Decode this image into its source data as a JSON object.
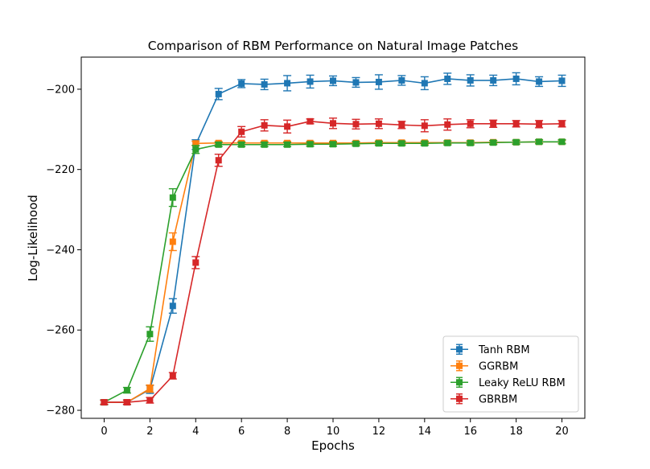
{
  "chart_data": {
    "type": "line",
    "title": "Comparison of RBM Performance on Natural Image Patches",
    "xlabel": "Epochs",
    "ylabel": "Log-Likelihood",
    "xlim": [
      -1,
      21
    ],
    "ylim": [
      -282,
      -192
    ],
    "xticks": [
      0,
      2,
      4,
      6,
      8,
      10,
      12,
      14,
      16,
      18,
      20
    ],
    "yticks": [
      -280,
      -260,
      -240,
      -220,
      -200
    ],
    "grid": false,
    "legend_position": "lower right",
    "x": [
      0,
      1,
      2,
      3,
      4,
      5,
      6,
      7,
      8,
      9,
      10,
      11,
      12,
      13,
      14,
      15,
      16,
      17,
      18,
      19,
      20
    ],
    "series": [
      {
        "name": "Tanh RBM",
        "color": "#1f77b4",
        "values": [
          -278.0,
          -278.0,
          -274.8,
          -254.0,
          -213.8,
          -201.2,
          -198.6,
          -198.8,
          -198.5,
          -198.1,
          -197.9,
          -198.3,
          -198.2,
          -197.8,
          -198.5,
          -197.4,
          -197.8,
          -197.8,
          -197.4,
          -198.1,
          -197.9
        ],
        "errors": [
          0.6,
          0.6,
          1.0,
          1.8,
          1.2,
          1.4,
          1.0,
          1.3,
          1.9,
          1.6,
          1.2,
          1.2,
          1.8,
          1.2,
          1.6,
          1.4,
          1.4,
          1.3,
          1.5,
          1.2,
          1.4
        ]
      },
      {
        "name": "GGRBM",
        "color": "#ff7f0e",
        "values": [
          -278.0,
          -278.0,
          -274.6,
          -238.0,
          -213.5,
          -213.4,
          -213.4,
          -213.4,
          -213.4,
          -213.4,
          -213.4,
          -213.4,
          -213.3,
          -213.3,
          -213.3,
          -213.3,
          -213.3,
          -213.2,
          -213.2,
          -213.1,
          -213.1
        ],
        "errors": [
          0.5,
          0.5,
          0.9,
          2.2,
          0.5,
          0.4,
          0.4,
          0.4,
          0.4,
          0.4,
          0.4,
          0.4,
          0.4,
          0.4,
          0.4,
          0.4,
          0.4,
          0.4,
          0.4,
          0.4,
          0.4
        ]
      },
      {
        "name": "Leaky ReLU RBM",
        "color": "#2ca02c",
        "values": [
          -278.0,
          -275.0,
          -261.0,
          -227.0,
          -215.0,
          -213.8,
          -213.8,
          -213.8,
          -213.8,
          -213.7,
          -213.7,
          -213.6,
          -213.5,
          -213.5,
          -213.5,
          -213.4,
          -213.4,
          -213.3,
          -213.2,
          -213.1,
          -213.1
        ],
        "errors": [
          0.6,
          0.7,
          1.8,
          2.2,
          1.0,
          0.5,
          0.5,
          0.5,
          0.5,
          0.5,
          0.5,
          0.5,
          0.5,
          0.5,
          0.5,
          0.5,
          0.5,
          0.5,
          0.5,
          0.5,
          0.5
        ]
      },
      {
        "name": "GBRBM",
        "color": "#d62728",
        "values": [
          -278.0,
          -278.0,
          -277.5,
          -271.4,
          -243.2,
          -217.7,
          -210.6,
          -209.0,
          -209.3,
          -208.0,
          -208.5,
          -208.7,
          -208.6,
          -208.9,
          -209.1,
          -208.8,
          -208.6,
          -208.6,
          -208.6,
          -208.7,
          -208.6
        ],
        "errors": [
          0.5,
          0.5,
          0.7,
          0.8,
          1.5,
          1.5,
          1.3,
          1.4,
          1.6,
          0.6,
          1.3,
          1.2,
          1.2,
          0.9,
          1.5,
          1.4,
          1.0,
          0.9,
          0.8,
          0.9,
          0.8
        ]
      }
    ]
  }
}
